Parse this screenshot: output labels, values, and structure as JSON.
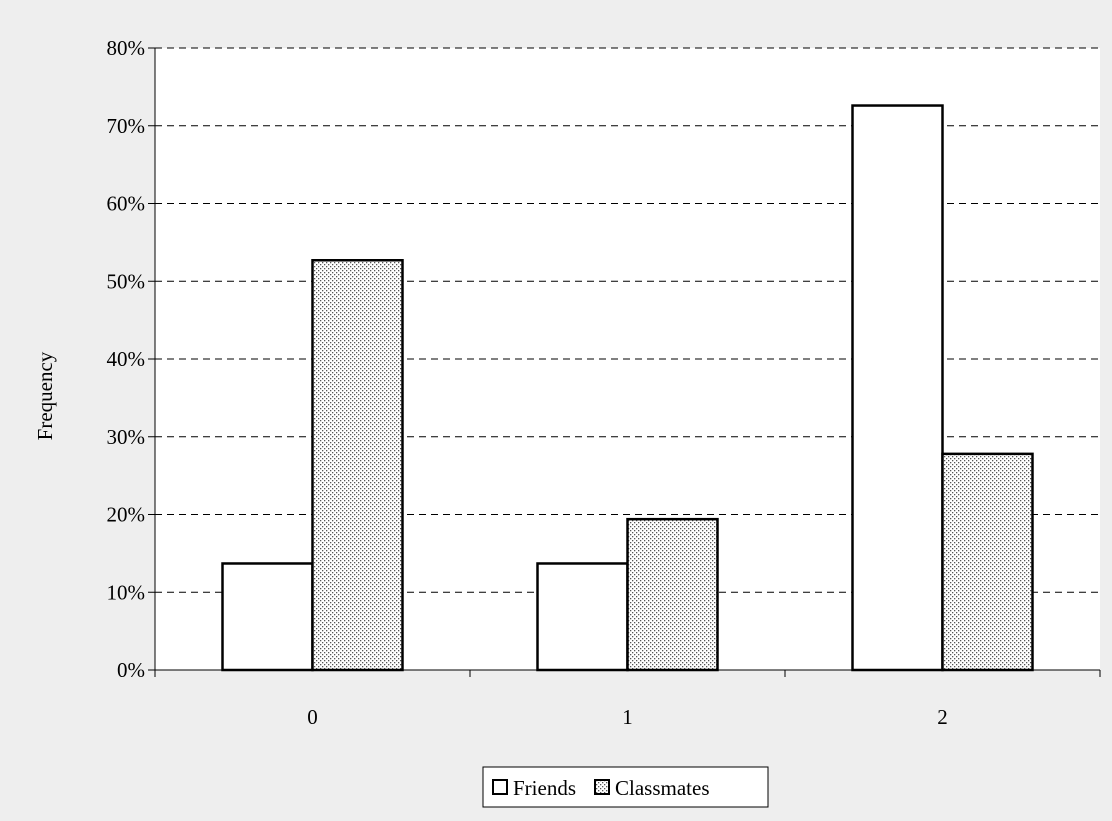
{
  "chart_data": {
    "type": "bar",
    "title": "",
    "xlabel": "",
    "ylabel": "Frequency",
    "categories": [
      "0",
      "1",
      "2"
    ],
    "series": [
      {
        "name": "Friends",
        "values": [
          13.7,
          13.7,
          72.6
        ],
        "pattern": "none"
      },
      {
        "name": "Classmates",
        "values": [
          52.7,
          19.4,
          27.8
        ],
        "pattern": "dots"
      }
    ],
    "ylim": [
      0,
      80
    ],
    "yticks": [
      0,
      10,
      20,
      30,
      40,
      50,
      60,
      70,
      80
    ],
    "ytick_labels": [
      "0%",
      "10%",
      "20%",
      "30%",
      "40%",
      "50%",
      "60%",
      "70%",
      "80%"
    ],
    "grid": "horizontal dashed",
    "legend_position": "bottom"
  },
  "colors": {
    "background": "#eeeeee",
    "plot_area": "#ffffff",
    "bar_fill": "#ffffff",
    "bar_stroke": "#000000",
    "grid": "#000000"
  }
}
